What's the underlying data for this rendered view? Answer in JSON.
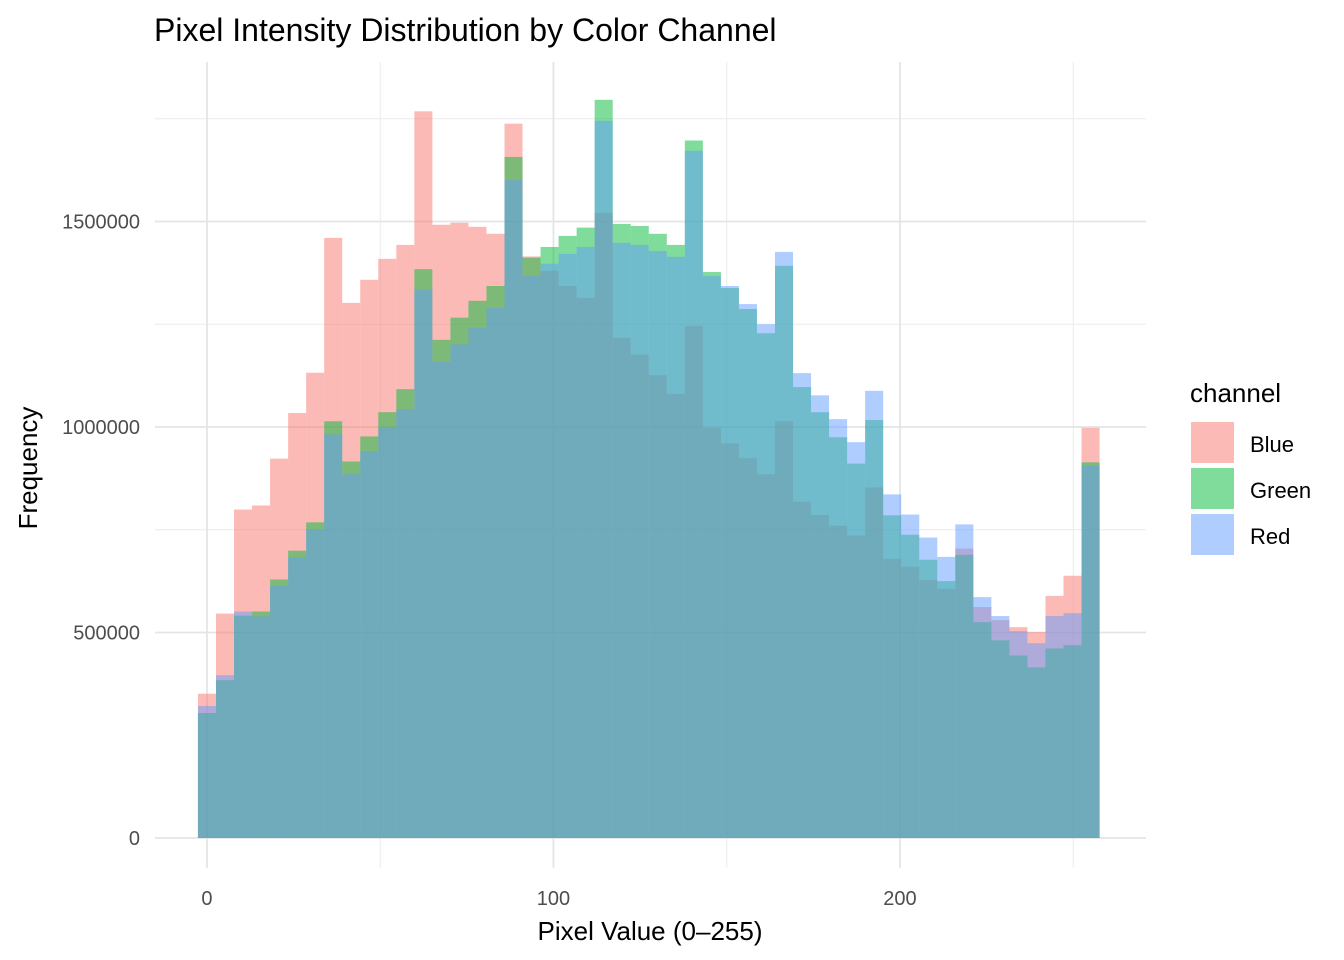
{
  "chart_data": {
    "type": "bar",
    "subtype": "overlapping histogram",
    "title": "Pixel Intensity Distribution by Color Channel",
    "xlabel": "Pixel Value (0–255)",
    "ylabel": "Frequency",
    "xlim": [
      -15,
      271
    ],
    "ylim": [
      -73000,
      1888000
    ],
    "x_ticks": [
      0,
      100,
      200
    ],
    "x_tick_labels": [
      "0",
      "100",
      "200"
    ],
    "y_ticks": [
      0,
      500000,
      1000000,
      1500000
    ],
    "y_tick_labels": [
      "0",
      "500000",
      "1000000",
      "1500000"
    ],
    "grid": true,
    "bins": 50,
    "bin_range": [
      0,
      255
    ],
    "opacity": 0.5,
    "legend": {
      "title": "channel",
      "position": "right"
    },
    "series": [
      {
        "name": "Blue",
        "color": "#F8766D",
        "values": [
          351000,
          546000,
          799000,
          809000,
          923000,
          1034000,
          1132000,
          1460000,
          1302000,
          1358000,
          1409000,
          1443000,
          1768000,
          1492000,
          1497000,
          1487000,
          1470000,
          1738000,
          1415000,
          1380000,
          1343000,
          1314000,
          1521000,
          1217000,
          1176000,
          1126000,
          1080000,
          1246000,
          998000,
          960000,
          924000,
          885000,
          1014000,
          818000,
          786000,
          760000,
          736000,
          853000,
          679000,
          660000,
          628000,
          606000,
          704000,
          562000,
          530000,
          513000,
          501000,
          589000,
          638000,
          998000
        ]
      },
      {
        "name": "Green",
        "color": "#00BA38",
        "values": [
          304000,
          384000,
          541000,
          551000,
          629000,
          699000,
          768000,
          1014000,
          916000,
          977000,
          1036000,
          1092000,
          1384000,
          1212000,
          1266000,
          1307000,
          1343000,
          1657000,
          1412000,
          1438000,
          1465000,
          1485000,
          1796000,
          1494000,
          1489000,
          1470000,
          1443000,
          1697000,
          1377000,
          1338000,
          1287000,
          1228000,
          1392000,
          1097000,
          1036000,
          975000,
          911000,
          1017000,
          785000,
          738000,
          677000,
          625000,
          689000,
          525000,
          481000,
          444000,
          415000,
          461000,
          469000,
          914000
        ]
      },
      {
        "name": "Red",
        "color": "#619CFF",
        "values": [
          321000,
          396000,
          551000,
          539000,
          613000,
          682000,
          750000,
          982000,
          885000,
          941000,
          998000,
          1043000,
          1334000,
          1159000,
          1201000,
          1241000,
          1290000,
          1601000,
          1368000,
          1397000,
          1421000,
          1438000,
          1745000,
          1448000,
          1443000,
          1428000,
          1414000,
          1672000,
          1367000,
          1343000,
          1299000,
          1250000,
          1426000,
          1131000,
          1077000,
          1019000,
          963000,
          1088000,
          836000,
          787000,
          731000,
          684000,
          763000,
          586000,
          540000,
          503000,
          474000,
          540000,
          547000,
          905000
        ]
      }
    ]
  }
}
